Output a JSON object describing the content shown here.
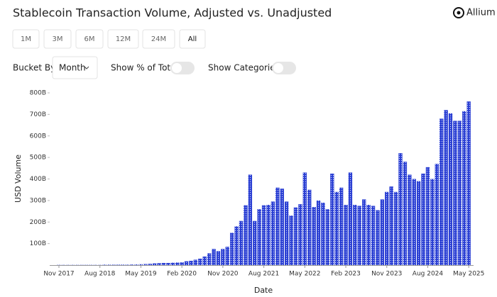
{
  "ui": {
    "title": "Stablecoin Transaction Volume, Adjusted vs. Unadjusted",
    "logo": "Allium",
    "ranges": [
      "1M",
      "3M",
      "6M",
      "12M",
      "24M",
      "All"
    ],
    "selected_range": "All",
    "bucket_label": "Bucket By",
    "bucket_value": "Month",
    "toggles": [
      "Show % of Total",
      "Show Categories"
    ]
  },
  "chart_data": {
    "type": "bar",
    "x_label": "Date",
    "y_label": "USD Volume",
    "color": "#2b3fd3",
    "categories": [
      "Nov 2017",
      null,
      null,
      null,
      null,
      null,
      null,
      null,
      null,
      "Aug 2018",
      null,
      null,
      null,
      null,
      null,
      null,
      null,
      null,
      "May 2019",
      null,
      null,
      null,
      null,
      null,
      null,
      null,
      null,
      "Feb 2020",
      null,
      null,
      null,
      null,
      null,
      null,
      null,
      null,
      "Nov 2020",
      null,
      null,
      null,
      null,
      null,
      null,
      null,
      null,
      "Aug 2021",
      null,
      null,
      null,
      null,
      null,
      null,
      null,
      null,
      "May 2022",
      null,
      null,
      null,
      null,
      null,
      null,
      null,
      null,
      "Feb 2023",
      null,
      null,
      null,
      null,
      null,
      null,
      null,
      null,
      "Nov 2023",
      null,
      null,
      null,
      null,
      null,
      null,
      null,
      null,
      "Aug 2024",
      null,
      null,
      null,
      null,
      null,
      null,
      null,
      null,
      "May 2025"
    ],
    "values": [
      1,
      1,
      1,
      1,
      1,
      1,
      1,
      1,
      1,
      1,
      2,
      2,
      2,
      2,
      2,
      2,
      3,
      3,
      4,
      5,
      6,
      8,
      9,
      10,
      10,
      11,
      12,
      13,
      18,
      20,
      25,
      30,
      40,
      55,
      75,
      65,
      75,
      85,
      150,
      180,
      205,
      278,
      420,
      205,
      260,
      278,
      280,
      295,
      360,
      355,
      295,
      230,
      268,
      283,
      430,
      350,
      270,
      300,
      290,
      260,
      425,
      340,
      360,
      280,
      430,
      280,
      275,
      305,
      280,
      275,
      255,
      305,
      340,
      365,
      340,
      520,
      480,
      420,
      400,
      390,
      425,
      455,
      400,
      470,
      680,
      720,
      705,
      670,
      670,
      715,
      760
    ],
    "ylim": [
      0,
      800
    ],
    "yticks": [
      {
        "value": 100,
        "label": "100B"
      },
      {
        "value": 200,
        "label": "200B"
      },
      {
        "value": 300,
        "label": "300B"
      },
      {
        "value": 400,
        "label": "400B"
      },
      {
        "value": 500,
        "label": "500B"
      },
      {
        "value": 600,
        "label": "600B"
      },
      {
        "value": 700,
        "label": "700B"
      },
      {
        "value": 800,
        "label": "800B"
      }
    ]
  }
}
